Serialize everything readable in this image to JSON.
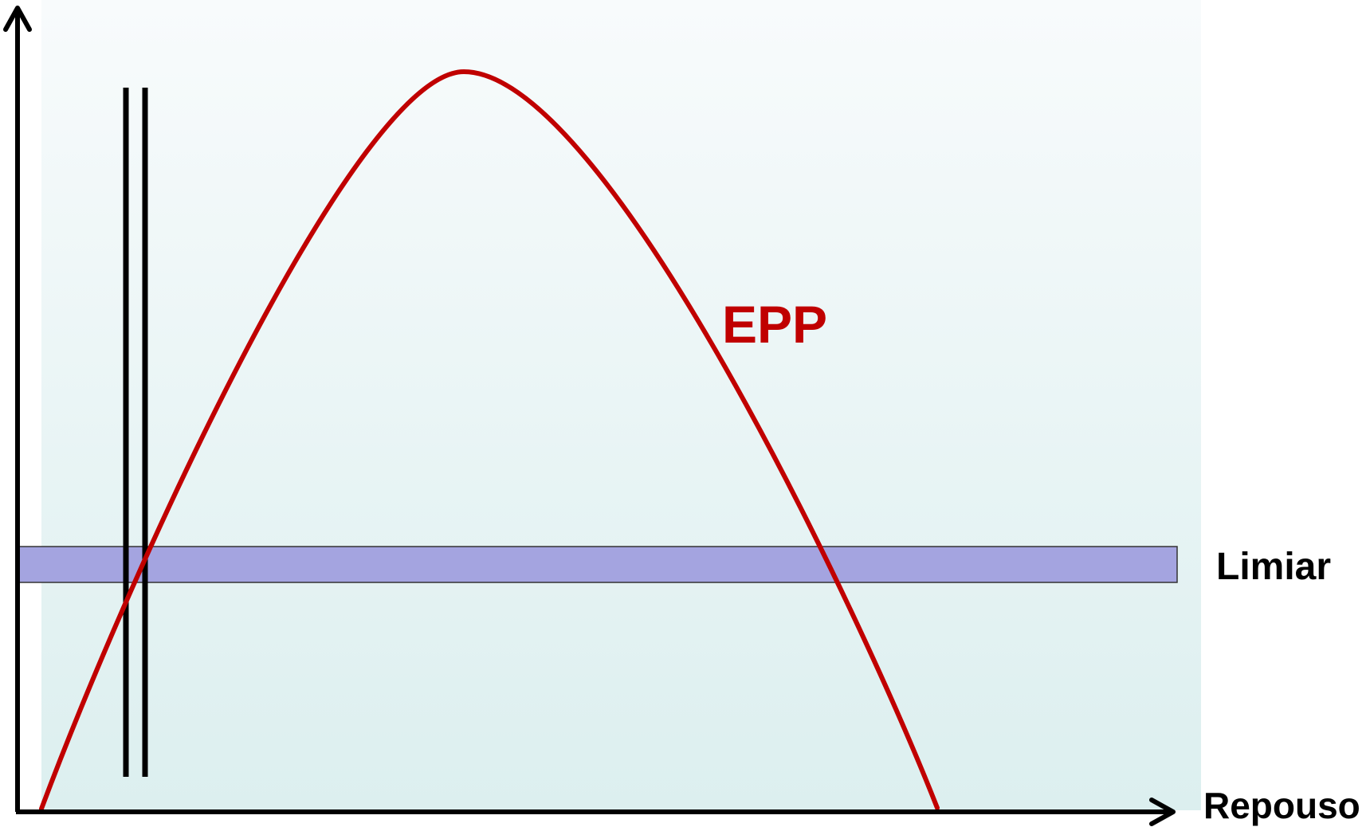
{
  "labels": {
    "curve": "EPP",
    "threshold": "Limiar",
    "x_axis": "Repouso"
  },
  "colors": {
    "background_top": "#f8fbfc",
    "background_bottom": "#dcefef",
    "curve": "#c00000",
    "threshold_band": "#a4a4e0",
    "axes": "#000000"
  },
  "elements": {
    "curve": {
      "shape": "bell-shaped-potential-curve",
      "crosses_threshold": 2
    },
    "threshold_band": {
      "shape": "horizontal-band"
    },
    "stimulus_markers": {
      "shape": "pair-of-vertical-lines",
      "count": 2
    }
  }
}
